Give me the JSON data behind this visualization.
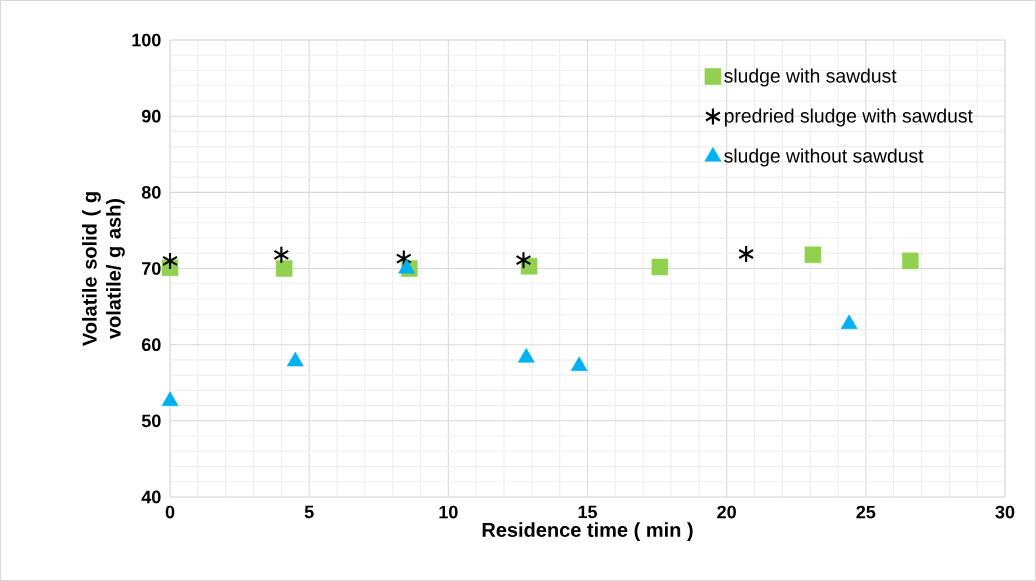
{
  "chart_data": {
    "type": "scatter",
    "xlabel": "Residence time ( min )",
    "ylabel": "Volatile solid ( g volatile/ g ash)",
    "xlim": [
      0,
      30
    ],
    "xticks": [
      0,
      5,
      10,
      15,
      20,
      25,
      30
    ],
    "ylim": [
      40,
      100
    ],
    "yticks": [
      40,
      50,
      60,
      70,
      80,
      90,
      100
    ],
    "grid": true,
    "legend": "top right",
    "series": [
      {
        "name": "sludge with sawdust",
        "color": "#92d050",
        "marker": "square",
        "x": [
          0,
          4.1,
          8.6,
          12.9,
          17.6,
          23.1,
          26.6
        ],
        "values": [
          70.1,
          70,
          70,
          70.3,
          70.2,
          71.8,
          71
        ]
      },
      {
        "name": "predried sludge with sawdust",
        "color": "#000000",
        "marker": "cross",
        "x": [
          0,
          4.0,
          8.4,
          12.7,
          20.7
        ],
        "values": [
          71,
          71.8,
          71.3,
          71.1,
          71.9
        ]
      },
      {
        "name": "sludge without sawdust",
        "color": "#00b0f0",
        "marker": "triangle",
        "x": [
          0,
          4.5,
          8.5,
          12.8,
          14.7,
          24.4
        ],
        "values": [
          52.6,
          57.8,
          70,
          58.3,
          57.2,
          62.7
        ]
      }
    ]
  }
}
